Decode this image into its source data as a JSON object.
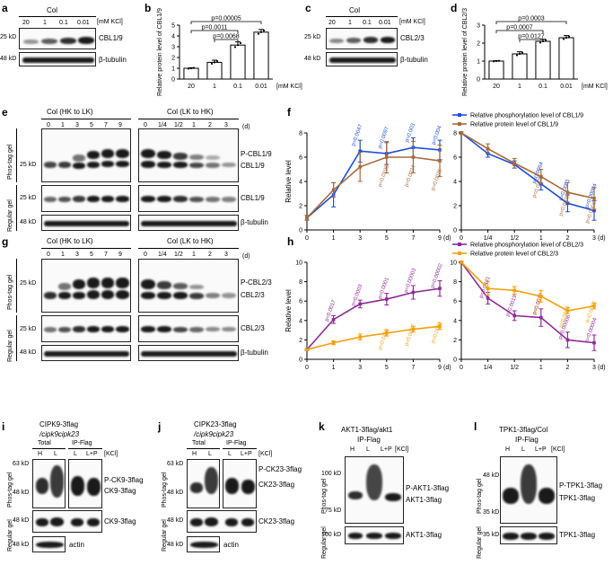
{
  "panels": {
    "a": {
      "label": "a",
      "group": "Col",
      "unit": "[mM KCl]",
      "lanes": [
        "20",
        "1",
        "0.1",
        "0.01"
      ],
      "mw": [
        "25 kD",
        "48 kD"
      ],
      "targets": [
        "CBL1/9",
        "β-tubulin"
      ]
    },
    "c": {
      "label": "c",
      "group": "Col",
      "unit": "[mM KCl]",
      "lanes": [
        "20",
        "1",
        "0.1",
        "0.01"
      ],
      "mw": [
        "25 kD",
        "48 kD"
      ],
      "targets": [
        "CBL2/3",
        "β-tubulin"
      ]
    },
    "e": {
      "label": "e",
      "groups": [
        "Col (HK to LK)",
        "Col (LK to HK)"
      ],
      "unit": "(d)",
      "lanes_hk": [
        "0",
        "1",
        "3",
        "5",
        "7",
        "9"
      ],
      "lanes_lk": [
        "0",
        "1/4",
        "1/2",
        "1",
        "2",
        "3"
      ],
      "gels": [
        "Phos-tag gel",
        "Regular gel"
      ],
      "mw": [
        "25 kD",
        "25 kD",
        "48 kD"
      ],
      "targets": [
        "P-CBL1/9",
        "CBL1/9",
        "CBL1/9",
        "β-tubulin"
      ]
    },
    "g": {
      "label": "g",
      "groups": [
        "Col (HK to LK)",
        "Col (LK to HK)"
      ],
      "unit": "(d)",
      "lanes_hk": [
        "0",
        "1",
        "3",
        "5",
        "7",
        "9"
      ],
      "lanes_lk": [
        "0",
        "1/4",
        "1/2",
        "1",
        "2",
        "3"
      ],
      "gels": [
        "Phos-tag gel",
        "Regular gel"
      ],
      "mw": [
        "25 kD",
        "25 kD",
        "48 kD"
      ],
      "targets": [
        "P-CBL2/3",
        "CBL2/3",
        "CBL2/3",
        "β-tubulin"
      ]
    },
    "i": {
      "label": "i",
      "title": "CIPK9-3flag",
      "subtitle": "/cipk9cipk23",
      "sections": [
        "Total",
        "IP-Flag"
      ],
      "lanes": [
        "H",
        "L",
        "L",
        "L+P"
      ],
      "unit": "[KCl]",
      "mw": [
        "63 kD",
        "48 kD",
        "48 kD",
        "48 kD"
      ],
      "targets": [
        "P-CK9-3flag",
        "CK9-3flag",
        "CK9-3flag",
        "actin"
      ],
      "gels": [
        "Phos-tag gel",
        "Regular gel"
      ]
    },
    "j": {
      "label": "j",
      "title": "CIPK23-3flag",
      "subtitle": "/cipk9cipk23",
      "sections": [
        "Total",
        "IP-Flag"
      ],
      "lanes": [
        "H",
        "L",
        "L",
        "L+P"
      ],
      "unit": "[KCl]",
      "mw": [
        "63 kD",
        "48 kD",
        "48 kD",
        "48 kD"
      ],
      "targets": [
        "P-CK23-3flag",
        "CK23-3flag",
        "CK23-3flag",
        "actin"
      ],
      "gels": [
        "Phos-tag gel",
        "Regular gel"
      ]
    },
    "k": {
      "label": "k",
      "title": "AKT1-3flag/akt1",
      "subtitle": "IP-Flag",
      "lanes": [
        "H",
        "L",
        "L+P"
      ],
      "unit": "[KCl]",
      "mw": [
        "100 kD",
        "75 kD",
        "100 kD"
      ],
      "targets": [
        "P-AKT1-3flag",
        "AKT1-3flag",
        "AKT1-3flag"
      ],
      "gels": [
        "Phos-tag gel",
        "Regular gel"
      ]
    },
    "l": {
      "label": "l",
      "title": "TPK1-3flag/Col",
      "subtitle": "IP-Flag",
      "lanes": [
        "H",
        "L",
        "L+P"
      ],
      "unit": "[KCl]",
      "mw": [
        "48 kD",
        "35 kD",
        "35 kD"
      ],
      "targets": [
        "P-TPK1-3flag",
        "TPK1-3flag",
        "TPK1-3flag"
      ],
      "gels": [
        "Phos-tag gel",
        "Regular gel"
      ]
    }
  },
  "chart_data": [
    {
      "id": "b",
      "type": "bar",
      "categories": [
        "20",
        "1",
        "0.1",
        "0.01"
      ],
      "xunit": "[mM KCl]",
      "ylabel": "Relative protein level of CBL1/9",
      "ylim": [
        0,
        5
      ],
      "yticks": [
        0,
        1,
        2,
        3,
        4,
        5
      ],
      "values": [
        1.0,
        1.55,
        3.15,
        4.35
      ],
      "errors": [
        0.05,
        0.2,
        0.3,
        0.25
      ],
      "pvalues": [
        "p=0.00005",
        "p=0.0011",
        "p=0.0068"
      ]
    },
    {
      "id": "d",
      "type": "bar",
      "categories": [
        "20",
        "1",
        "0.1",
        "0.01"
      ],
      "xunit": "[mM KCl]",
      "ylabel": "Relative protein level of CBL2/3",
      "ylim": [
        0,
        3
      ],
      "yticks": [
        0,
        1,
        2,
        3
      ],
      "values": [
        1.0,
        1.4,
        2.1,
        2.3
      ],
      "errors": [
        0.02,
        0.12,
        0.12,
        0.12
      ],
      "pvalues": [
        "p=0.0003",
        "p=0.0007",
        "p=0.0127"
      ]
    },
    {
      "id": "f",
      "type": "line",
      "ylabel": "Relative level",
      "ylim": [
        0,
        8
      ],
      "yticks": [
        0,
        2,
        4,
        6,
        8
      ],
      "legend": [
        "Relative phosphorylation level of CBL1/9",
        "Relative protein level of CBL1/9"
      ],
      "colors": [
        "#1f4fd8",
        "#a8693a"
      ],
      "left": {
        "x": [
          "0",
          "1",
          "3",
          "5",
          "7",
          "9"
        ],
        "unit": "(d)",
        "series": [
          {
            "values": [
              1.0,
              2.9,
              6.5,
              6.3,
              6.8,
              6.6
            ],
            "errors": [
              0.2,
              1.0,
              0.9,
              0.9,
              0.8,
              0.8
            ],
            "pvalues": [
              "p=0.0047",
              "p=0.0097",
              "p=0.003",
              "p=0.004"
            ]
          },
          {
            "values": [
              1.0,
              3.3,
              5.2,
              6.0,
              6.0,
              5.7
            ],
            "errors": [
              0.2,
              0.6,
              1.2,
              1.3,
              1.3,
              1.3
            ],
            "pvalues": [
              "p=0.0195",
              "p=0.0024",
              "p=0.0025"
            ]
          }
        ]
      },
      "right": {
        "x": [
          "0",
          "1/4",
          "1/2",
          "1",
          "2",
          "3"
        ],
        "unit": "(d)",
        "series": [
          {
            "values": [
              8.0,
              6.3,
              5.4,
              3.8,
              2.2,
              1.6
            ],
            "errors": [
              0.1,
              0.3,
              0.3,
              0.5,
              0.7,
              0.8
            ],
            "pvalues": [
              "p=0.0064",
              "p=0.0001",
              "p=0.00004"
            ]
          },
          {
            "values": [
              8.0,
              6.7,
              5.5,
              4.4,
              3.1,
              2.6
            ],
            "errors": [
              0.1,
              0.4,
              0.4,
              0.6,
              0.8,
              0.9
            ],
            "pvalues": [
              "p=0.0479",
              "p=0.0029",
              "p=0.0006"
            ]
          }
        ]
      }
    },
    {
      "id": "h",
      "type": "line",
      "ylabel": "Relative level",
      "ylim": [
        0,
        10
      ],
      "yticks": [
        0,
        2,
        4,
        6,
        8,
        10
      ],
      "legend": [
        "Relative phosphorylation level of CBL2/3",
        "Relative protein level of CBL2/3"
      ],
      "colors": [
        "#8e2b97",
        "#f2a10a"
      ],
      "left": {
        "x": [
          "0",
          "1",
          "3",
          "5",
          "7",
          "9"
        ],
        "unit": "(d)",
        "series": [
          {
            "values": [
              1.0,
              4.1,
              5.7,
              6.2,
              6.9,
              7.3
            ],
            "errors": [
              0.1,
              0.4,
              0.4,
              0.6,
              0.7,
              0.8
            ],
            "pvalues": [
              "p=0.0017",
              "p=0.0003",
              "p=0.0001",
              "p=0.00003",
              "p=0.00002"
            ]
          },
          {
            "values": [
              1.0,
              1.7,
              2.3,
              2.7,
              3.1,
              3.4
            ],
            "errors": [
              0.05,
              0.2,
              0.3,
              0.3,
              0.3,
              0.3
            ],
            "pvalues": [
              "p=0.0119",
              "p=0.0037",
              "p=0.0012"
            ]
          }
        ]
      },
      "right": {
        "x": [
          "0",
          "1/4",
          "1/2",
          "1",
          "2",
          "3"
        ],
        "unit": "(d)",
        "series": [
          {
            "values": [
              10.0,
              6.3,
              4.5,
              4.3,
              2.0,
              1.7
            ],
            "errors": [
              0.1,
              0.6,
              0.5,
              0.9,
              0.8,
              0.8
            ],
            "pvalues": [
              "p=0.0441",
              "p=0.0019",
              "p=0.0017",
              "p=0.00006",
              "p=0.00004"
            ]
          },
          {
            "values": [
              10.0,
              7.3,
              7.1,
              6.5,
              5.0,
              5.5
            ],
            "errors": [
              0.1,
              0.7,
              0.4,
              0.6,
              0.3,
              0.3
            ],
            "pvalues": [
              "p=0.035",
              "p=0.0023",
              "p=0.0072"
            ]
          }
        ]
      }
    }
  ]
}
